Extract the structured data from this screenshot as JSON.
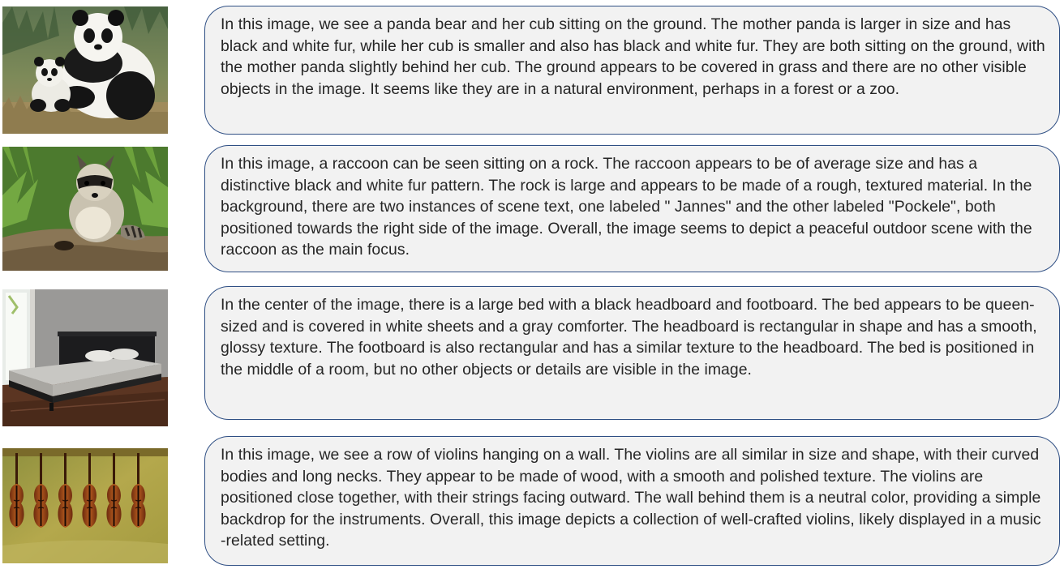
{
  "rows": [
    {
      "id": "panda",
      "caption": "In this image, we see a panda bear and her cub sitting on the ground. The mother panda is larger in size and has black and white fur, while her cub is smaller and also has black and white fur. They are both sitting on the ground, with the mother panda slightly behind her cub. The ground appears to be covered in grass and there are no other visible objects in the image. It seems like they are in a natural environment, perhaps in a forest or a zoo."
    },
    {
      "id": "raccoon",
      "caption": "In this image, a raccoon can be seen sitting on a rock. The raccoon appears to be of average size and has a distinctive black and white fur pattern. The rock is large and appears to be made of a rough, textured material. In the background, there are two instances of scene text, one labeled \" Jannes\" and the other labeled \"Pockele\", both positioned towards the right side of the image. Overall, the image seems to depict a peaceful outdoor scene with the raccoon as the  main focus."
    },
    {
      "id": "bed",
      "caption": "In the center of the image, there is a large bed with a black headboard and footboard. The bed appears to be queen-sized and is covered in white sheets and a gray comforter. The headboard is rectangular in shape and has a smooth, glossy texture. The footboard is also rectangular and has a similar texture to the headboard. The bed is positioned in the middle of a room, but no other objects or details are visible in the image."
    },
    {
      "id": "violins",
      "caption": "In this image, we see a row of violins hanging on a wall. The violins are all similar in size and shape, with their curved bodies and long necks. They appear to be made of wood, with a smooth and polished texture. The violins are positioned close together, with their strings facing outward. The wall behind them is a neutral color, providing a simple backdrop for the instruments. Overall, this image depicts a collection of well-crafted violins, likely displayed in a music -related setting."
    }
  ],
  "colors": {
    "box_border": "#2f4f84",
    "box_fill": "#f2f2f2",
    "text": "#262626"
  }
}
